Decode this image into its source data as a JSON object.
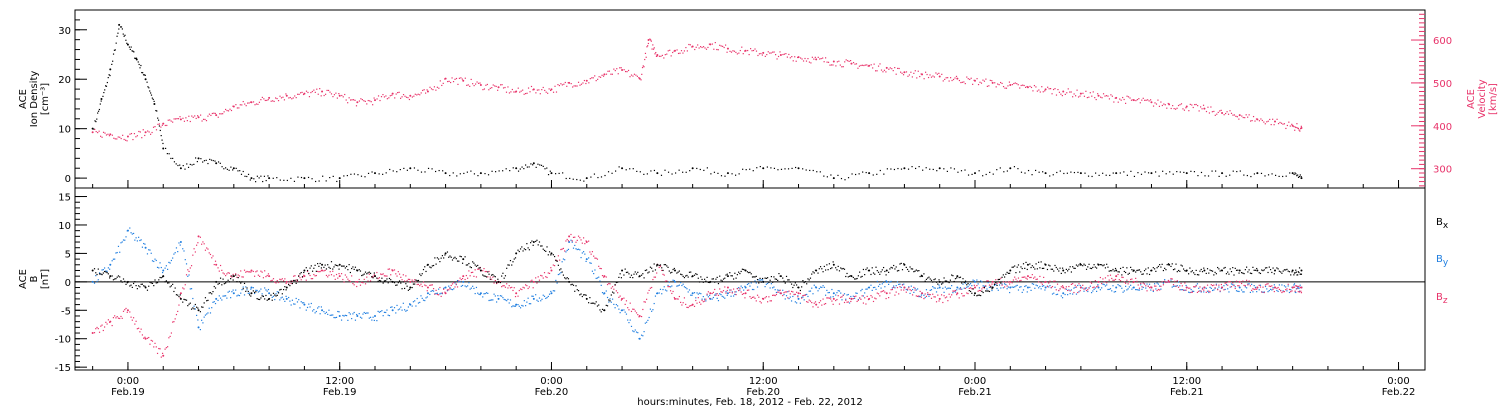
{
  "chart_data": [
    {
      "type": "scatter",
      "panel": "top",
      "ylabel_left": [
        "ACE",
        "Ion Density",
        "[cm⁻³]"
      ],
      "ylabel_right": [
        "ACE",
        "Velocity",
        "[km/s]"
      ],
      "ylim_left": [
        -2,
        34
      ],
      "yticks_left": [
        "0",
        "10",
        "20",
        "30"
      ],
      "ylim_right": [
        255,
        670
      ],
      "yticks_right": [
        "300",
        "400",
        "500",
        "600"
      ],
      "series": [
        {
          "axis": "left",
          "color": "#000000",
          "x": [
            -2,
            -1.5,
            -1,
            -0.5,
            0,
            0.5,
            1,
            1.5,
            2,
            3,
            4,
            5,
            6,
            7,
            8,
            10,
            12,
            14,
            16,
            18,
            20,
            22,
            23,
            24,
            26,
            28,
            30,
            32,
            34,
            36,
            38,
            40,
            42,
            44,
            46,
            48,
            50,
            52,
            54,
            56,
            58,
            60,
            62,
            64,
            66,
            66.5
          ],
          "y": [
            10,
            16,
            22,
            31,
            27,
            24,
            20,
            15,
            6,
            2,
            4,
            3,
            2,
            0,
            0,
            0,
            0,
            1,
            2,
            1,
            1,
            2,
            3,
            1,
            0,
            2,
            1,
            2,
            1,
            2,
            2,
            0,
            1,
            2,
            2,
            1,
            2,
            1,
            1,
            1,
            1,
            1,
            1,
            1,
            1,
            0
          ]
        },
        {
          "axis": "right",
          "color": "#e8336a",
          "x": [
            -2,
            -1,
            0,
            1,
            2,
            3,
            4,
            5,
            6,
            7,
            8,
            9,
            10,
            11,
            12,
            13,
            14,
            15,
            16,
            17,
            18,
            19,
            20,
            21,
            22,
            23,
            24,
            25,
            26,
            27,
            28,
            29,
            29.5,
            30,
            31,
            32,
            33,
            34,
            35,
            36,
            37,
            38,
            39,
            40,
            41,
            42,
            43,
            44,
            45,
            46,
            47,
            48,
            49,
            50,
            51,
            52,
            53,
            54,
            55,
            56,
            57,
            58,
            59,
            60,
            61,
            62,
            63,
            64,
            65,
            66,
            66.5
          ],
          "y": [
            385,
            380,
            375,
            385,
            405,
            415,
            420,
            425,
            445,
            455,
            465,
            470,
            475,
            480,
            470,
            455,
            460,
            475,
            470,
            480,
            510,
            505,
            495,
            490,
            480,
            485,
            485,
            500,
            505,
            520,
            530,
            510,
            600,
            565,
            575,
            585,
            590,
            580,
            575,
            570,
            565,
            560,
            555,
            550,
            545,
            540,
            535,
            525,
            520,
            515,
            510,
            505,
            500,
            495,
            490,
            485,
            480,
            475,
            470,
            465,
            460,
            455,
            450,
            445,
            440,
            430,
            425,
            415,
            410,
            400,
            395
          ]
        }
      ]
    },
    {
      "type": "scatter",
      "panel": "bottom",
      "ylabel": [
        "ACE",
        "B",
        "[nT]"
      ],
      "ylim": [
        -15.5,
        16.5
      ],
      "yticks": [
        "-15",
        "-10",
        "-5",
        "0",
        "5",
        "10",
        "15"
      ],
      "legend": [
        "Bx",
        "By",
        "Bz"
      ],
      "series": [
        {
          "name": "Bx",
          "color": "#000000",
          "x": [
            -2,
            -1,
            0,
            1,
            2,
            3,
            4,
            5,
            6,
            7,
            8,
            9,
            10,
            11,
            12,
            13,
            14,
            15,
            16,
            17,
            18,
            19,
            20,
            21,
            22,
            23,
            24,
            25,
            26,
            27,
            28,
            29,
            30,
            31,
            32,
            33,
            34,
            35,
            36,
            37,
            38,
            39,
            40,
            41,
            42,
            43,
            44,
            45,
            46,
            47,
            48,
            49,
            50,
            51,
            52,
            53,
            54,
            55,
            56,
            57,
            58,
            59,
            60,
            61,
            62,
            63,
            64,
            65,
            66,
            66.5
          ],
          "y": [
            2,
            1,
            0,
            -1,
            1,
            -3,
            -5,
            0,
            1,
            -2,
            -3,
            -1,
            2,
            3,
            3,
            2,
            1,
            0,
            -1,
            3,
            5,
            4,
            2,
            0,
            5,
            7,
            5,
            0,
            -3,
            -5,
            2,
            1,
            3,
            2,
            1,
            0,
            1,
            2,
            0,
            1,
            -1,
            2,
            3,
            1,
            2,
            2,
            3,
            1,
            0,
            1,
            -2,
            -1,
            2,
            3,
            3,
            2,
            3,
            3,
            2,
            2,
            2,
            3,
            2,
            2,
            2,
            2,
            2,
            2,
            2,
            2
          ]
        },
        {
          "name": "By",
          "color": "#1f7ee0",
          "x": [
            -2,
            -1,
            0,
            1,
            2,
            3,
            4,
            5,
            6,
            7,
            8,
            9,
            10,
            11,
            12,
            13,
            14,
            15,
            16,
            17,
            18,
            19,
            20,
            21,
            22,
            23,
            24,
            25,
            26,
            27,
            28,
            29,
            30,
            31,
            32,
            33,
            34,
            35,
            36,
            37,
            38,
            39,
            40,
            41,
            42,
            43,
            44,
            45,
            46,
            47,
            48,
            49,
            50,
            51,
            52,
            53,
            54,
            55,
            56,
            57,
            58,
            59,
            60,
            61,
            62,
            63,
            64,
            65,
            66,
            66.5
          ],
          "y": [
            0,
            3,
            9,
            6,
            2,
            7,
            -8,
            -3,
            -2,
            -1,
            -2,
            -3,
            -4,
            -5,
            -6,
            -6,
            -6,
            -5,
            -4,
            -2,
            -1,
            0,
            -2,
            -3,
            -4,
            -3,
            -2,
            7,
            4,
            -2,
            -5,
            -10,
            -2,
            0,
            -2,
            -3,
            -2,
            -1,
            0,
            -2,
            -3,
            -1,
            -2,
            -3,
            -1,
            0,
            -1,
            -2,
            -1,
            -1,
            0,
            -1,
            -1,
            -1,
            -1,
            -2,
            -1,
            -1,
            -1,
            -1,
            -1,
            0,
            -1,
            -1,
            -1,
            -1,
            -1,
            -1,
            -1,
            -1
          ]
        },
        {
          "name": "Bz",
          "color": "#e8336a",
          "x": [
            -2,
            -1,
            0,
            1,
            2,
            3,
            4,
            5,
            6,
            7,
            8,
            9,
            10,
            11,
            12,
            13,
            14,
            15,
            16,
            17,
            18,
            19,
            20,
            21,
            22,
            23,
            24,
            25,
            26,
            27,
            28,
            29,
            30,
            31,
            32,
            33,
            34,
            35,
            36,
            37,
            38,
            39,
            40,
            41,
            42,
            43,
            44,
            45,
            46,
            47,
            48,
            49,
            50,
            51,
            52,
            53,
            54,
            55,
            56,
            57,
            58,
            59,
            60,
            61,
            62,
            63,
            64,
            65,
            66,
            66.5
          ],
          "y": [
            -9,
            -7,
            -5,
            -10,
            -13,
            -2,
            8,
            3,
            1,
            2,
            1,
            0,
            1,
            2,
            1,
            0,
            1,
            2,
            0,
            -1,
            -2,
            1,
            2,
            0,
            -2,
            0,
            2,
            8,
            7,
            1,
            -3,
            -6,
            3,
            -3,
            -4,
            -2,
            -1,
            -2,
            -3,
            -2,
            -2,
            -4,
            -3,
            -3,
            -3,
            -2,
            -1,
            -2,
            -3,
            -2,
            -1,
            0,
            0,
            1,
            0,
            -1,
            -1,
            0,
            1,
            0,
            -1,
            0,
            -1,
            -1,
            -1,
            0,
            -1,
            -1,
            -1,
            -1
          ]
        }
      ]
    }
  ],
  "xaxis": {
    "xlim": [
      -3,
      73.5
    ],
    "ticks": [
      {
        "x": 0,
        "time": "0:00",
        "date": "Feb.19"
      },
      {
        "x": 12,
        "time": "12:00",
        "date": "Feb.19"
      },
      {
        "x": 24,
        "time": "0:00",
        "date": "Feb.20"
      },
      {
        "x": 36,
        "time": "12:00",
        "date": "Feb.20"
      },
      {
        "x": 48,
        "time": "0:00",
        "date": "Feb.21"
      },
      {
        "x": 60,
        "time": "12:00",
        "date": "Feb.21"
      },
      {
        "x": 72,
        "time": "0:00",
        "date": "Feb.22"
      }
    ],
    "label": "hours:minutes, Feb. 18, 2012 - Feb. 22, 2012"
  },
  "colors": {
    "black": "#000000",
    "blue": "#1f7ee0",
    "pink": "#e8336a"
  }
}
